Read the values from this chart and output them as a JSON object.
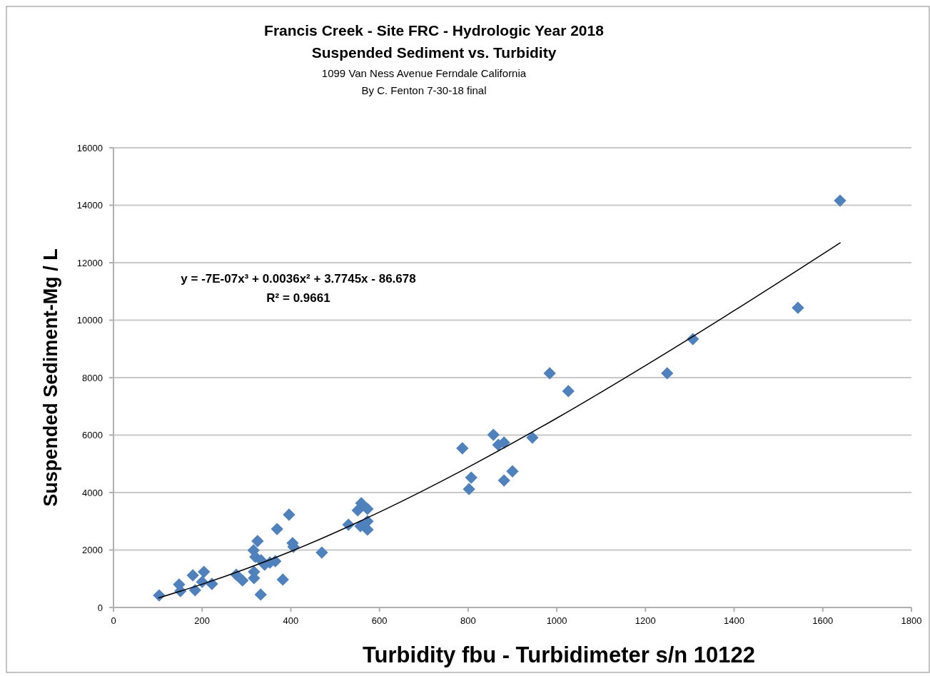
{
  "chart_data": {
    "type": "scatter",
    "title": "Francis Creek - Site FRC - Hydrologic Year 2018",
    "subtitle": "Suspended Sediment vs. Turbidity",
    "xlabel": "Turbidity fbu - Turbidimeter s/n 10122",
    "ylabel": "Suspended Sediment-Mg / L",
    "annotations": [
      "1099 Van Ness Avenue Ferndale California",
      "By C. Fenton 7-30-18 final",
      "y = -7E-07x³ + 0.0036x² + 3.7745x - 86.678",
      "R² = 0.9661"
    ],
    "xlim": [
      0,
      1800
    ],
    "xticks": [
      0,
      200,
      400,
      600,
      800,
      1000,
      1200,
      1400,
      1600,
      1800
    ],
    "ylim": [
      0,
      16000
    ],
    "yticks": [
      0,
      2000,
      4000,
      6000,
      8000,
      10000,
      12000,
      14000,
      16000
    ],
    "grid": "y",
    "marker": "diamond",
    "series": [
      {
        "color": "#4f81bd",
        "x": [
          103,
          148,
          151,
          179,
          184,
          204,
          200,
          222,
          277,
          291,
          317,
          317,
          316,
          325,
          320,
          333,
          341,
          353,
          365,
          369,
          396,
          404,
          406,
          470,
          382,
          332,
          530,
          787,
          857,
          868,
          881,
          945,
          807,
          802,
          881,
          900,
          559,
          551,
          573,
          557,
          573,
          573,
          984,
          1026,
          1249,
          1307,
          1544,
          1639
        ],
        "values": [
          420,
          800,
          570,
          1120,
          600,
          1240,
          890,
          820,
          1140,
          940,
          1020,
          1240,
          1990,
          2310,
          1760,
          1640,
          1490,
          1560,
          1610,
          2730,
          3230,
          2240,
          2110,
          1910,
          970,
          450,
          2880,
          5540,
          6010,
          5660,
          5740,
          5910,
          4520,
          4120,
          4420,
          4740,
          3630,
          3380,
          3430,
          2830,
          3000,
          2710,
          8150,
          7530,
          8150,
          9340,
          10430,
          14160
        ]
      },
      {
        "type": "line",
        "color": "#000000",
        "marker": "none",
        "line_style": "solid",
        "x": [
          101,
          200,
          400,
          600,
          800,
          1000,
          1200,
          1400,
          1640
        ],
        "values": [
          330,
          810,
          1950,
          3320,
          4880,
          6590,
          8420,
          10330,
          12700
        ]
      }
    ]
  }
}
